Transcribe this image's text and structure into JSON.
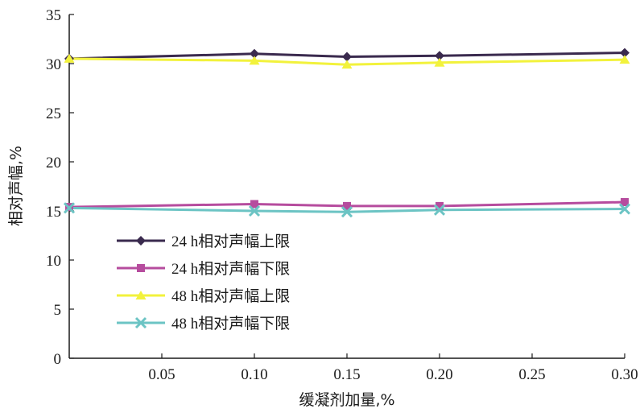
{
  "chart_data": {
    "type": "line",
    "xlabel": "缓凝剂加量,%",
    "ylabel": "相对声幅,%",
    "xlim": [
      0,
      0.3
    ],
    "ylim": [
      0,
      35
    ],
    "x_ticks": [
      "0.05",
      "0.10",
      "0.15",
      "0.20",
      "0.25",
      "0.30"
    ],
    "y_ticks": [
      "0",
      "5",
      "10",
      "15",
      "20",
      "25",
      "30",
      "35"
    ],
    "grid": false,
    "legend_position": "bottom-left",
    "x": [
      0,
      0.1,
      0.15,
      0.2,
      0.3
    ],
    "series": [
      {
        "name": "24 h相对声幅上限",
        "values": [
          30.5,
          31.0,
          30.7,
          30.8,
          31.1
        ],
        "color": "#3a2a4e",
        "marker": "diamond"
      },
      {
        "name": "24 h相对声幅下限",
        "values": [
          15.4,
          15.7,
          15.5,
          15.5,
          15.9
        ],
        "color": "#b64c9e",
        "marker": "square"
      },
      {
        "name": "48 h相对声幅上限",
        "values": [
          30.5,
          30.3,
          29.9,
          30.1,
          30.4
        ],
        "color": "#f2f23c",
        "marker": "triangle"
      },
      {
        "name": "48 h相对声幅下限",
        "values": [
          15.3,
          15.0,
          14.9,
          15.1,
          15.2
        ],
        "color": "#6cc4c4",
        "marker": "x"
      }
    ]
  }
}
